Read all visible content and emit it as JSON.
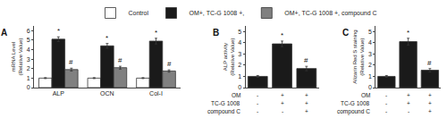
{
  "chart_data": [
    {
      "type": "bar",
      "title": "A",
      "categories": [
        "ALP",
        "OCN",
        "Col-I"
      ],
      "series": [
        {
          "name": "Control",
          "color": "#ffffff",
          "values": [
            1.0,
            1.0,
            1.0
          ],
          "errors": [
            0.05,
            0.05,
            0.05
          ]
        },
        {
          "name": "OM+, TC-G 1008 +,",
          "color": "#1a1a1a",
          "values": [
            5.1,
            4.4,
            4.9
          ],
          "errors": [
            0.25,
            0.25,
            0.3
          ]
        },
        {
          "name": "OM+, TC-G 1008 +, compound C",
          "color": "#808080",
          "values": [
            1.9,
            2.1,
            1.75
          ],
          "errors": [
            0.15,
            0.15,
            0.12
          ]
        }
      ],
      "ylabel": "mRNA Level\n(Relative Value)",
      "ylim": [
        0,
        6.5
      ],
      "yticks": [
        0,
        1,
        2,
        3,
        4,
        5,
        6
      ],
      "grid": false,
      "legend": "top",
      "annotations": [
        {
          "text": "*",
          "series": "OM+, TC-G 1008 +,"
        },
        {
          "text": "#",
          "series": "OM+, TC-G 1008 +, compound C"
        }
      ]
    },
    {
      "type": "bar",
      "title": "B",
      "categories": [
        null,
        null,
        null
      ],
      "values": [
        1.0,
        3.9,
        1.7
      ],
      "errors": [
        0.08,
        0.25,
        0.2
      ],
      "color": "#1a1a1a",
      "ylabel": "ALP activity\n(Relative Value)",
      "ylim": [
        0,
        5.5
      ],
      "yticks": [
        0,
        1,
        2,
        3,
        4,
        5
      ],
      "grid": false,
      "x_rows": [
        {
          "label": "OM",
          "values": [
            "-",
            "+",
            "+"
          ]
        },
        {
          "label": "TC-G 1008",
          "values": [
            "-",
            "+",
            "+"
          ]
        },
        {
          "label": "compound C",
          "values": [
            "-",
            "-",
            "+"
          ]
        }
      ],
      "annotations": [
        {
          "text": "*",
          "category": 1
        },
        {
          "text": "#",
          "category": 2
        }
      ]
    },
    {
      "type": "bar",
      "title": "C",
      "categories": [
        null,
        null,
        null
      ],
      "values": [
        1.0,
        4.1,
        1.55
      ],
      "errors": [
        0.08,
        0.3,
        0.15
      ],
      "color": "#1a1a1a",
      "ylabel": "Alizarin Red S staining\n(Relative Value)",
      "ylim": [
        0,
        5.5
      ],
      "yticks": [
        0,
        1,
        2,
        3,
        4,
        5
      ],
      "grid": false,
      "x_rows": [
        {
          "label": "OM",
          "values": [
            "-",
            "+",
            "+"
          ]
        },
        {
          "label": "TC-G 1008",
          "values": [
            "-",
            "+",
            "+"
          ]
        },
        {
          "label": "compound C",
          "values": [
            "-",
            "-",
            "+"
          ]
        }
      ],
      "annotations": [
        {
          "text": "*",
          "category": 1
        },
        {
          "text": "#",
          "category": 2
        }
      ]
    }
  ]
}
